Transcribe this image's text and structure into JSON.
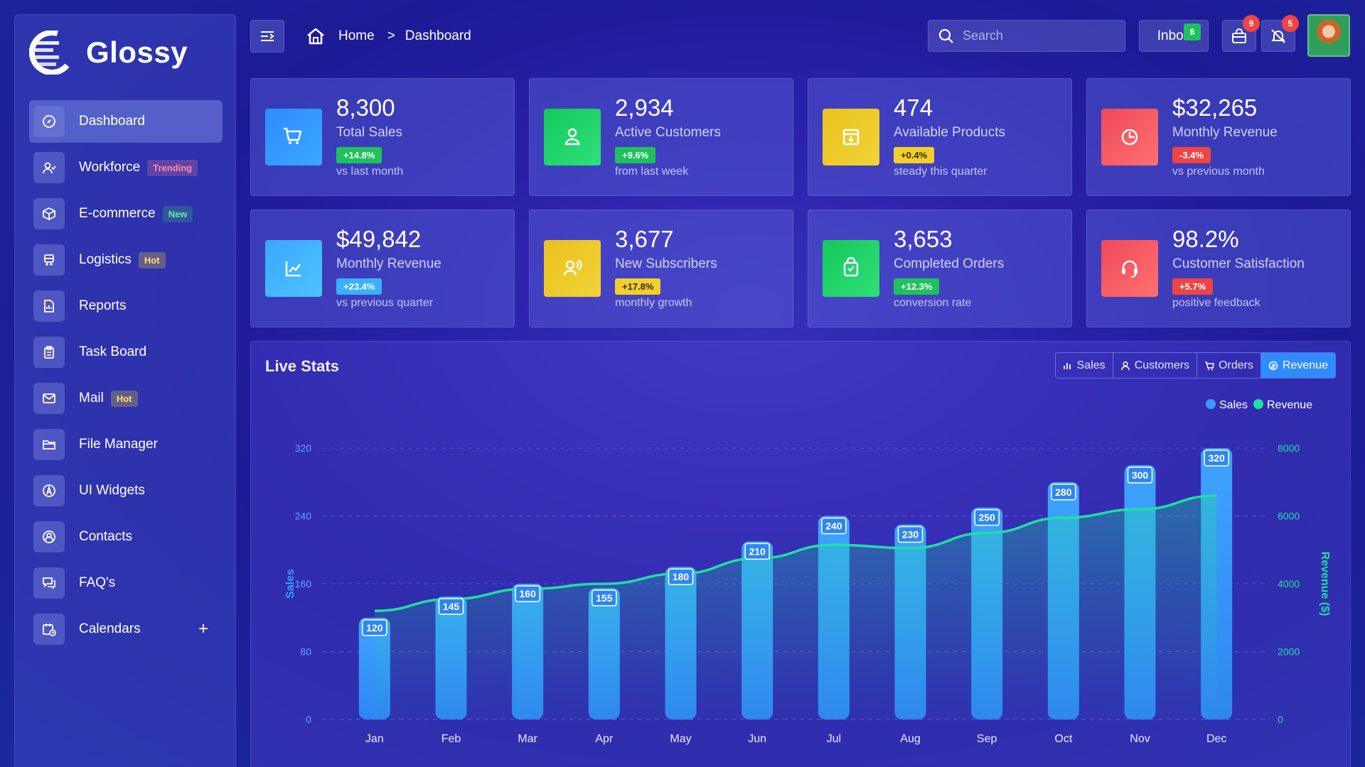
{
  "brand": {
    "name": "Glossy"
  },
  "sidebar": {
    "items": [
      {
        "label": "Dashboard",
        "icon": "compass-icon",
        "badge": "",
        "active": true
      },
      {
        "label": "Workforce",
        "icon": "users-icon",
        "badge": "Trending"
      },
      {
        "label": "E-commerce",
        "icon": "box-icon",
        "badge": "New"
      },
      {
        "label": "Logistics",
        "icon": "truck-icon",
        "badge": "Hot"
      },
      {
        "label": "Reports",
        "icon": "report-icon",
        "badge": ""
      },
      {
        "label": "Task Board",
        "icon": "clipboard-icon",
        "badge": ""
      },
      {
        "label": "Mail",
        "icon": "mail-icon",
        "badge": "Hot"
      },
      {
        "label": "File Manager",
        "icon": "folder-icon",
        "badge": ""
      },
      {
        "label": "UI Widgets",
        "icon": "widget-icon",
        "badge": ""
      },
      {
        "label": "Contacts",
        "icon": "contact-icon",
        "badge": ""
      },
      {
        "label": "FAQ's",
        "icon": "chat-icon",
        "badge": ""
      },
      {
        "label": "Calendars",
        "icon": "calendar-icon",
        "badge": "",
        "plus": "+"
      }
    ]
  },
  "header": {
    "breadcrumb": {
      "home": "Home",
      "current": "Dashboard",
      "separator": ">"
    },
    "search": {
      "placeholder": "Search"
    },
    "inbox": {
      "label": "Inbox",
      "count": "8"
    },
    "cart_count": "9",
    "notif_count": "5"
  },
  "stats": [
    {
      "value": "8,300",
      "label": "Total Sales",
      "change": "+14.8%",
      "note": "vs last month",
      "color": "#2f8bff"
    },
    {
      "value": "2,934",
      "label": "Active Customers",
      "change": "+9.6%",
      "note": "from last week",
      "color": "#14c85a"
    },
    {
      "value": "474",
      "label": "Available Products",
      "change": "+0.4%",
      "note": "steady this quarter",
      "color": "#e8c21e"
    },
    {
      "value": "$32,265",
      "label": "Monthly Revenue",
      "change": "-3.4%",
      "note": "vs previous month",
      "color": "#ef4a5a"
    },
    {
      "value": "$49,842",
      "label": "Monthly Revenue",
      "change": "+23.4%",
      "note": "vs previous quarter",
      "color": "#3ba6ff"
    },
    {
      "value": "3,677",
      "label": "New Subscribers",
      "change": "+17.8%",
      "note": "monthly growth",
      "color": "#e8c21e"
    },
    {
      "value": "3,653",
      "label": "Completed Orders",
      "change": "+12.3%",
      "note": "conversion rate",
      "color": "#14c85a"
    },
    {
      "value": "98.2%",
      "label": "Customer Satisfaction",
      "change": "+5.7%",
      "note": "positive feedback",
      "color": "#ef4a5a"
    }
  ],
  "live_stats": {
    "title": "Live Stats",
    "tabs": [
      "Sales",
      "Customers",
      "Orders",
      "Revenue"
    ],
    "active_tab": "Revenue"
  },
  "chart_data": {
    "type": "bar",
    "categories": [
      "Jan",
      "Feb",
      "Mar",
      "Apr",
      "May",
      "Jun",
      "Jul",
      "Aug",
      "Sep",
      "Oct",
      "Nov",
      "Dec"
    ],
    "series": [
      {
        "name": "Sales",
        "type": "bar",
        "axis": "left",
        "color": "#3a9bff",
        "values": [
          120,
          145,
          160,
          155,
          180,
          210,
          240,
          230,
          250,
          280,
          300,
          320
        ]
      },
      {
        "name": "Revenue",
        "type": "line",
        "axis": "right",
        "color": "#1ee0a0",
        "values": [
          3200,
          3550,
          3850,
          4000,
          4300,
          4750,
          5150,
          5050,
          5500,
          5950,
          6200,
          6600
        ]
      }
    ],
    "ylabel": "Sales",
    "y2label": "Revenue ($)",
    "ylim": [
      0,
      320
    ],
    "y2lim": [
      0,
      8000
    ],
    "yticks": [
      0,
      80,
      160,
      240,
      320
    ],
    "y2ticks": [
      0,
      2000,
      4000,
      6000,
      8000
    ],
    "legend": [
      "Sales",
      "Revenue"
    ],
    "legend_position": "top-right",
    "grid": true
  }
}
